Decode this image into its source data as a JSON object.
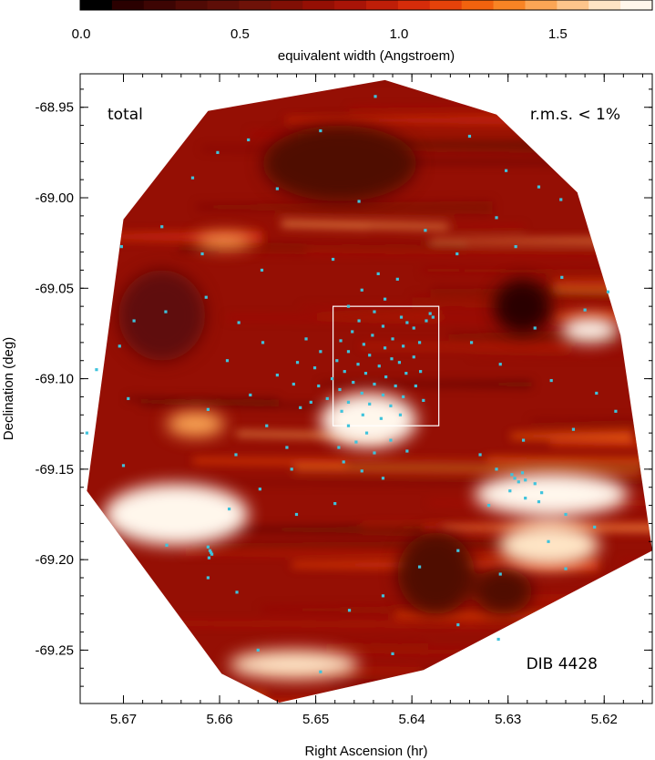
{
  "chart_data": {
    "type": "heatmap",
    "xlabel": "Right Ascension (hr)",
    "ylabel": "Declination (deg)",
    "xlim": [
      5.6745,
      5.615
    ],
    "ylim": [
      -69.2795,
      -68.9315
    ],
    "x_ticks": [
      5.67,
      5.66,
      5.65,
      5.64,
      5.63,
      5.62
    ],
    "x_tick_labels": [
      "5.67",
      "5.66",
      "5.65",
      "5.64",
      "5.63",
      "5.62"
    ],
    "y_ticks": [
      -68.95,
      -69.0,
      -69.05,
      -69.1,
      -69.15,
      -69.2,
      -69.25
    ],
    "y_tick_labels": [
      "-68.95",
      "-69.00",
      "-69.05",
      "-69.10",
      "-69.15",
      "-69.20",
      "-69.25"
    ],
    "colorbar": {
      "label": "equivalent width (Angstroem)",
      "range": [
        0.0,
        1.8
      ],
      "ticks": [
        0.0,
        0.5,
        1.0,
        1.5
      ],
      "tick_labels": [
        "0.0",
        "0.5",
        "1.0",
        "1.5"
      ],
      "colors": [
        "#000000",
        "#2a0000",
        "#3d0503",
        "#500a05",
        "#5e0e07",
        "#6e1208",
        "#800f05",
        "#950f04",
        "#a81407",
        "#be1e08",
        "#d62c0a",
        "#e6420a",
        "#f2620e",
        "#f88424",
        "#fba655",
        "#fdc58b",
        "#fee4c4",
        "#fff7ec"
      ]
    },
    "annotations": {
      "top_left": "total",
      "top_right": "r.m.s. < 1%",
      "bottom_right": "DIB 4428"
    },
    "coverage_polygon": [
      [
        5.6428,
        -68.935
      ],
      [
        5.6312,
        -68.954
      ],
      [
        5.6228,
        -68.997
      ],
      [
        5.6183,
        -69.076
      ],
      [
        5.615,
        -69.195
      ],
      [
        5.6388,
        -69.261
      ],
      [
        5.6538,
        -69.279
      ],
      [
        5.6598,
        -69.263
      ],
      [
        5.6738,
        -69.162
      ],
      [
        5.67,
        -69.012
      ],
      [
        5.6612,
        -68.952
      ]
    ],
    "highlight_box": {
      "ra": [
        5.6482,
        5.6372
      ],
      "dec": [
        -69.06,
        -69.126
      ]
    },
    "high_ew_regions": [
      {
        "ra": [
          5.672,
          5.657
        ],
        "dec": [
          -69.158,
          -69.192
        ],
        "ew": 1.78
      },
      {
        "ra": [
          5.6495,
          5.6395
        ],
        "dec": [
          -69.108,
          -69.138
        ],
        "ew": 1.7
      },
      {
        "ra": [
          5.6335,
          5.6175
        ],
        "dec": [
          -69.152,
          -69.176
        ],
        "ew": 1.75
      },
      {
        "ra": [
          5.631,
          5.6205
        ],
        "dec": [
          -69.18,
          -69.204
        ],
        "ew": 1.6
      },
      {
        "ra": [
          5.6245,
          5.6185
        ],
        "dec": [
          -69.066,
          -69.08
        ],
        "ew": 1.7
      },
      {
        "ra": [
          5.6655,
          5.6595
        ],
        "dec": [
          -69.118,
          -69.132
        ],
        "ew": 1.5
      },
      {
        "ra": [
          5.659,
          5.6455
        ],
        "dec": [
          -69.25,
          -69.266
        ],
        "ew": 1.6
      },
      {
        "ra": [
          5.6625,
          5.6565
        ],
        "dec": [
          -69.02,
          -69.028
        ],
        "ew": 1.45
      }
    ],
    "low_ew_regions": [
      {
        "ra": [
          5.6315,
          5.6255
        ],
        "dec": [
          -69.045,
          -69.075
        ],
        "ew": 0.15
      },
      {
        "ra": [
          5.6555,
          5.6395
        ],
        "dec": [
          -68.96,
          -69.002
        ],
        "ew": 0.35
      },
      {
        "ra": [
          5.6415,
          5.6335
        ],
        "dec": [
          -69.185,
          -69.23
        ],
        "ew": 0.3
      },
      {
        "ra": [
          5.6705,
          5.6615
        ],
        "dec": [
          -69.04,
          -69.09
        ],
        "ew": 0.45
      },
      {
        "ra": [
          5.6335,
          5.6275
        ],
        "dec": [
          -69.205,
          -69.23
        ],
        "ew": 0.35
      }
    ],
    "stars": [
      [
        5.6435,
        -69.042
      ],
      [
        5.6415,
        -69.045
      ],
      [
        5.6452,
        -69.051
      ],
      [
        5.6428,
        -69.056
      ],
      [
        5.6466,
        -69.06
      ],
      [
        5.6439,
        -69.063
      ],
      [
        5.6411,
        -69.066
      ],
      [
        5.6455,
        -69.068
      ],
      [
        5.643,
        -69.071
      ],
      [
        5.6405,
        -69.069
      ],
      [
        5.6462,
        -69.074
      ],
      [
        5.6441,
        -69.076
      ],
      [
        5.642,
        -69.078
      ],
      [
        5.6474,
        -69.079
      ],
      [
        5.645,
        -69.081
      ],
      [
        5.6428,
        -69.083
      ],
      [
        5.6409,
        -69.082
      ],
      [
        5.6466,
        -69.085
      ],
      [
        5.6444,
        -69.087
      ],
      [
        5.6421,
        -69.089
      ],
      [
        5.6478,
        -69.09
      ],
      [
        5.6456,
        -69.092
      ],
      [
        5.6434,
        -69.093
      ],
      [
        5.6413,
        -69.091
      ],
      [
        5.647,
        -69.096
      ],
      [
        5.6448,
        -69.097
      ],
      [
        5.6427,
        -69.099
      ],
      [
        5.6406,
        -69.097
      ],
      [
        5.6483,
        -69.1
      ],
      [
        5.6461,
        -69.102
      ],
      [
        5.6439,
        -69.103
      ],
      [
        5.6417,
        -69.104
      ],
      [
        5.6475,
        -69.106
      ],
      [
        5.6452,
        -69.108
      ],
      [
        5.643,
        -69.109
      ],
      [
        5.6409,
        -69.11
      ],
      [
        5.6488,
        -69.111
      ],
      [
        5.6466,
        -69.113
      ],
      [
        5.6444,
        -69.114
      ],
      [
        5.6422,
        -69.115
      ],
      [
        5.6473,
        -69.118
      ],
      [
        5.6451,
        -69.12
      ],
      [
        5.6432,
        -69.122
      ],
      [
        5.6412,
        -69.12
      ],
      [
        5.6381,
        -69.064
      ],
      [
        5.6378,
        -69.066
      ],
      [
        5.6385,
        -69.068
      ],
      [
        5.6398,
        -69.072
      ],
      [
        5.6392,
        -69.08
      ],
      [
        5.6398,
        -69.088
      ],
      [
        5.6391,
        -69.096
      ],
      [
        5.6396,
        -69.104
      ],
      [
        5.6388,
        -69.112
      ],
      [
        5.6495,
        -69.085
      ],
      [
        5.6501,
        -69.094
      ],
      [
        5.6497,
        -69.104
      ],
      [
        5.6505,
        -69.113
      ],
      [
        5.651,
        -69.078
      ],
      [
        5.6519,
        -69.091
      ],
      [
        5.6523,
        -69.103
      ],
      [
        5.6516,
        -69.116
      ],
      [
        5.6466,
        -69.126
      ],
      [
        5.6447,
        -69.13
      ],
      [
        5.6458,
        -69.135
      ],
      [
        5.6439,
        -69.141
      ],
      [
        5.6471,
        -69.146
      ],
      [
        5.6452,
        -69.151
      ],
      [
        5.643,
        -69.155
      ],
      [
        5.6476,
        -69.138
      ],
      [
        5.6422,
        -69.134
      ],
      [
        5.6405,
        -69.14
      ],
      [
        5.6628,
        -68.989
      ],
      [
        5.657,
        -68.968
      ],
      [
        5.6495,
        -68.963
      ],
      [
        5.6438,
        -68.944
      ],
      [
        5.634,
        -68.966
      ],
      [
        5.6302,
        -68.985
      ],
      [
        5.6268,
        -68.994
      ],
      [
        5.6245,
        -69.001
      ],
      [
        5.6312,
        -69.011
      ],
      [
        5.6386,
        -69.018
      ],
      [
        5.6455,
        -69.002
      ],
      [
        5.654,
        -68.995
      ],
      [
        5.6602,
        -68.975
      ],
      [
        5.666,
        -69.016
      ],
      [
        5.6702,
        -69.027
      ],
      [
        5.6618,
        -69.031
      ],
      [
        5.6556,
        -69.04
      ],
      [
        5.6482,
        -69.034
      ],
      [
        5.6353,
        -69.031
      ],
      [
        5.6292,
        -69.027
      ],
      [
        5.6244,
        -69.044
      ],
      [
        5.6196,
        -69.052
      ],
      [
        5.622,
        -69.062
      ],
      [
        5.6272,
        -69.072
      ],
      [
        5.6338,
        -69.08
      ],
      [
        5.6308,
        -69.092
      ],
      [
        5.6255,
        -69.101
      ],
      [
        5.6208,
        -69.108
      ],
      [
        5.6188,
        -69.118
      ],
      [
        5.6232,
        -69.128
      ],
      [
        5.6284,
        -69.134
      ],
      [
        5.6329,
        -69.142
      ],
      [
        5.6312,
        -69.15
      ],
      [
        5.6282,
        -69.156
      ],
      [
        5.6298,
        -69.162
      ],
      [
        5.6268,
        -69.168
      ],
      [
        5.632,
        -69.17
      ],
      [
        5.624,
        -69.175
      ],
      [
        5.621,
        -69.182
      ],
      [
        5.6258,
        -69.19
      ],
      [
        5.6352,
        -69.195
      ],
      [
        5.6392,
        -69.204
      ],
      [
        5.6308,
        -69.208
      ],
      [
        5.624,
        -69.205
      ],
      [
        5.643,
        -69.22
      ],
      [
        5.6465,
        -69.228
      ],
      [
        5.6352,
        -69.236
      ],
      [
        5.631,
        -69.244
      ],
      [
        5.642,
        -69.252
      ],
      [
        5.6495,
        -69.262
      ],
      [
        5.656,
        -69.25
      ],
      [
        5.6612,
        -69.21
      ],
      [
        5.6582,
        -69.218
      ],
      [
        5.6655,
        -69.192
      ],
      [
        5.659,
        -69.172
      ],
      [
        5.6558,
        -69.161
      ],
      [
        5.652,
        -69.175
      ],
      [
        5.648,
        -69.169
      ],
      [
        5.67,
        -69.148
      ],
      [
        5.6738,
        -69.13
      ],
      [
        5.6695,
        -69.111
      ],
      [
        5.6728,
        -69.095
      ],
      [
        5.6704,
        -69.082
      ],
      [
        5.6689,
        -69.068
      ],
      [
        5.6656,
        -69.063
      ],
      [
        5.6614,
        -69.055
      ],
      [
        5.658,
        -69.069
      ],
      [
        5.6555,
        -69.08
      ],
      [
        5.6592,
        -69.09
      ],
      [
        5.654,
        -69.098
      ],
      [
        5.6568,
        -69.109
      ],
      [
        5.6612,
        -69.117
      ],
      [
        5.6551,
        -69.126
      ],
      [
        5.653,
        -69.138
      ],
      [
        5.6583,
        -69.142
      ],
      [
        5.6525,
        -69.15
      ],
      [
        5.6612,
        -69.193
      ],
      [
        5.661,
        -69.195
      ],
      [
        5.6609,
        -69.196
      ],
      [
        5.6608,
        -69.197
      ],
      [
        5.6611,
        -69.199
      ],
      [
        5.6296,
        -69.153
      ],
      [
        5.6293,
        -69.155
      ],
      [
        5.6289,
        -69.157
      ],
      [
        5.6285,
        -69.152
      ],
      [
        5.6272,
        -69.158
      ],
      [
        5.6265,
        -69.163
      ],
      [
        5.6282,
        -69.166
      ]
    ]
  }
}
